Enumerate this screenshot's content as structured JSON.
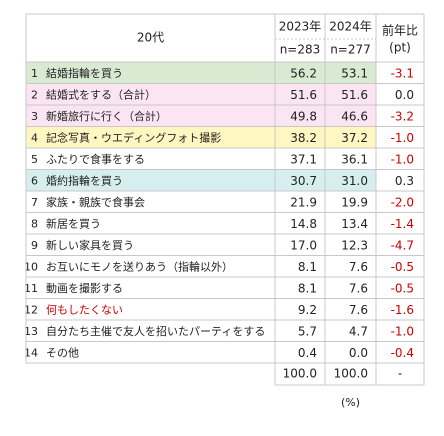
{
  "chart_data": {
    "type": "table",
    "header": {
      "group_label": "20代",
      "years": [
        "2023年",
        "2024年"
      ],
      "ns": [
        "n=283",
        "n=277"
      ],
      "diff_label_1": "前年比",
      "diff_label_2": "(pt)"
    },
    "columns": [
      "2023年",
      "2024年",
      "前年比(pt)"
    ],
    "rows": [
      {
        "rank": "1",
        "label": "結婚指輪を買う",
        "v2023": "56.2",
        "v2024": "53.1",
        "diff": "-3.1",
        "highlight": "#d9ead3",
        "diff_color": "#cc0000"
      },
      {
        "rank": "2",
        "label": "結婚式をする（合計）",
        "v2023": "51.6",
        "v2024": "51.6",
        "diff": "0.0",
        "highlight": "#fbe5f3",
        "diff_color": "#222222"
      },
      {
        "rank": "3",
        "label": "新婚旅行に行く（合計）",
        "v2023": "49.8",
        "v2024": "46.6",
        "diff": "-3.2",
        "highlight": "#fbe5f3",
        "diff_color": "#cc0000"
      },
      {
        "rank": "4",
        "label": "記念写真・ウエディングフォト撮影",
        "v2023": "38.2",
        "v2024": "37.2",
        "diff": "-1.0",
        "highlight": "#fff7c2",
        "diff_color": "#cc0000"
      },
      {
        "rank": "5",
        "label": "ふたりで食事をする",
        "v2023": "37.1",
        "v2024": "36.1",
        "diff": "-1.0",
        "highlight": "",
        "diff_color": "#cc0000"
      },
      {
        "rank": "6",
        "label": "婚約指輪を買う",
        "v2023": "30.7",
        "v2024": "31.0",
        "diff": "0.3",
        "highlight": "#d7eef0",
        "diff_color": "#222222"
      },
      {
        "rank": "7",
        "label": "家族・親族で食事会",
        "v2023": "21.9",
        "v2024": "19.9",
        "diff": "-2.0",
        "highlight": "",
        "diff_color": "#cc0000"
      },
      {
        "rank": "8",
        "label": "新居を買う",
        "v2023": "14.8",
        "v2024": "13.4",
        "diff": "-1.4",
        "highlight": "",
        "diff_color": "#cc0000"
      },
      {
        "rank": "9",
        "label": "新しい家具を買う",
        "v2023": "17.0",
        "v2024": "12.3",
        "diff": "-4.7",
        "highlight": "",
        "diff_color": "#cc0000"
      },
      {
        "rank": "10",
        "label": "お互いにモノを送りあう（指輪以外）",
        "v2023": "8.1",
        "v2024": "7.6",
        "diff": "-0.5",
        "highlight": "",
        "diff_color": "#cc0000"
      },
      {
        "rank": "11",
        "label": "動画を撮影する",
        "v2023": "8.1",
        "v2024": "7.6",
        "diff": "-0.5",
        "highlight": "",
        "diff_color": "#cc0000"
      },
      {
        "rank": "12",
        "label": "何もしたくない",
        "v2023": "9.2",
        "v2024": "7.6",
        "diff": "-1.6",
        "highlight": "",
        "diff_color": "#cc0000",
        "label_color": "#cc0000"
      },
      {
        "rank": "13",
        "label": "自分たち主催で友人を招いたパーティをする",
        "v2023": "5.7",
        "v2024": "4.7",
        "diff": "-1.0",
        "highlight": "",
        "diff_color": "#cc0000"
      },
      {
        "rank": "14",
        "label": "その他",
        "v2023": "0.4",
        "v2024": "0.0",
        "diff": "-0.4",
        "highlight": "",
        "diff_color": "#cc0000"
      }
    ],
    "totals": {
      "v2023": "100.0",
      "v2024": "100.0",
      "diff": "-"
    },
    "unit_note": "(%)"
  }
}
